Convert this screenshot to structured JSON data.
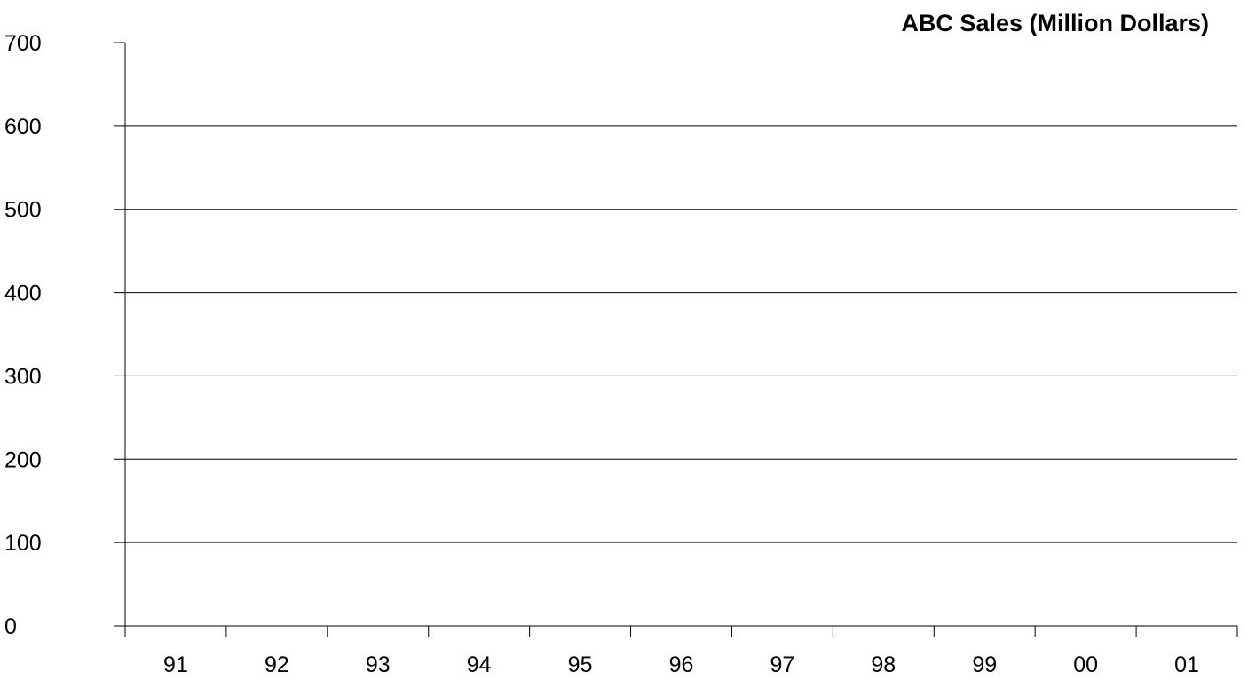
{
  "chart_data": {
    "type": "line",
    "title": "ABC Sales (Million Dollars)",
    "xlabel": "",
    "ylabel": "",
    "categories": [
      "91",
      "92",
      "93",
      "94",
      "95",
      "96",
      "97",
      "98",
      "99",
      "00",
      "01"
    ],
    "series": [],
    "ylim": [
      0,
      700
    ],
    "yticks": [
      "0",
      "100",
      "200",
      "300",
      "400",
      "500",
      "600",
      "700"
    ],
    "grid": true,
    "legend": "none"
  }
}
